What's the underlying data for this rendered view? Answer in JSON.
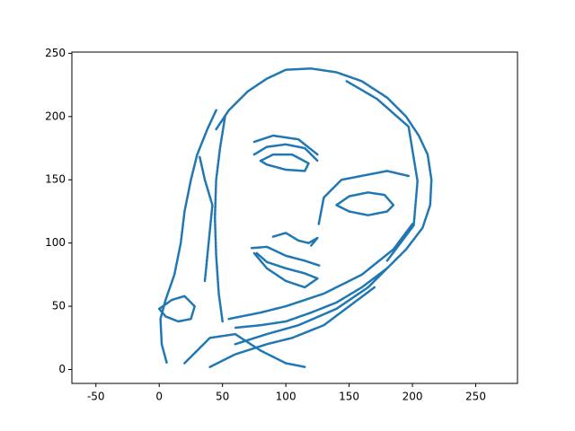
{
  "chart_data": {
    "type": "line",
    "color": "#1f77b4",
    "grid": false,
    "xlim": [
      -69,
      283
    ],
    "ylim": [
      -11,
      251
    ],
    "xticks": [
      -50,
      0,
      50,
      100,
      150,
      200,
      250
    ],
    "yticks": [
      0,
      50,
      100,
      150,
      200,
      250
    ],
    "series": [
      {
        "x": [
          45,
          55,
          70,
          85,
          100,
          120,
          140,
          160,
          180,
          195,
          205,
          212,
          215,
          214,
          208,
          195,
          180,
          160,
          140,
          120,
          100,
          80,
          60
        ],
        "y": [
          190,
          205,
          220,
          230,
          237,
          238,
          235,
          228,
          215,
          200,
          185,
          170,
          150,
          130,
          112,
          95,
          80,
          65,
          53,
          45,
          38,
          35,
          33
        ]
      },
      {
        "x": [
          148,
          172,
          197,
          204,
          201,
          180
        ],
        "y": [
          228,
          214,
          192,
          149,
          114,
          86
        ]
      },
      {
        "x": [
          52,
          48,
          45,
          44,
          45,
          47,
          50
        ],
        "y": [
          200,
          175,
          150,
          120,
          90,
          60,
          38
        ]
      },
      {
        "x": [
          45,
          38,
          30,
          25,
          20,
          17,
          12,
          5,
          1,
          2,
          6
        ],
        "y": [
          205,
          190,
          170,
          150,
          125,
          100,
          75,
          55,
          40,
          20,
          5
        ]
      },
      {
        "x": [
          32,
          36,
          42,
          40,
          38,
          36
        ],
        "y": [
          168,
          150,
          130,
          110,
          90,
          70
        ]
      },
      {
        "x": [
          75,
          85,
          100,
          115,
          125
        ],
        "y": [
          170,
          176,
          178,
          175,
          165
        ]
      },
      {
        "x": [
          80,
          90,
          105,
          118,
          115,
          100,
          85,
          80
        ],
        "y": [
          165,
          170,
          170,
          163,
          157,
          158,
          162,
          165
        ]
      },
      {
        "x": [
          75,
          90,
          110,
          125
        ],
        "y": [
          180,
          185,
          182,
          170
        ]
      },
      {
        "x": [
          140,
          150,
          165,
          178,
          185,
          180,
          165,
          150,
          140
        ],
        "y": [
          130,
          137,
          140,
          138,
          130,
          125,
          122,
          125,
          130
        ]
      },
      {
        "x": [
          126,
          130,
          144,
          180,
          197
        ],
        "y": [
          115,
          136,
          150,
          157,
          153
        ]
      },
      {
        "x": [
          90,
          100,
          110,
          118,
          125,
          120
        ],
        "y": [
          105,
          108,
          102,
          100,
          104,
          98
        ]
      },
      {
        "x": [
          73,
          85,
          100,
          115,
          127
        ],
        "y": [
          96,
          97,
          90,
          86,
          82
        ]
      },
      {
        "x": [
          75,
          85,
          100,
          115,
          125,
          115,
          100,
          85,
          77
        ],
        "y": [
          92,
          80,
          70,
          65,
          72,
          76,
          80,
          85,
          92
        ]
      },
      {
        "x": [
          55,
          80,
          100,
          130,
          160,
          185,
          200
        ],
        "y": [
          40,
          45,
          50,
          60,
          75,
          95,
          115
        ]
      },
      {
        "x": [
          60,
          85,
          110,
          140,
          165,
          180
        ],
        "y": [
          20,
          28,
          35,
          48,
          65,
          80
        ]
      },
      {
        "x": [
          40,
          60,
          85,
          105,
          130,
          150,
          170
        ],
        "y": [
          2,
          12,
          20,
          25,
          35,
          50,
          65
        ]
      },
      {
        "x": [
          20,
          40,
          60,
          80,
          100,
          115
        ],
        "y": [
          5,
          25,
          28,
          15,
          5,
          2
        ]
      },
      {
        "x": [
          0,
          10,
          20,
          28,
          25,
          15,
          5,
          0
        ],
        "y": [
          48,
          55,
          58,
          50,
          40,
          38,
          42,
          48
        ]
      }
    ]
  }
}
